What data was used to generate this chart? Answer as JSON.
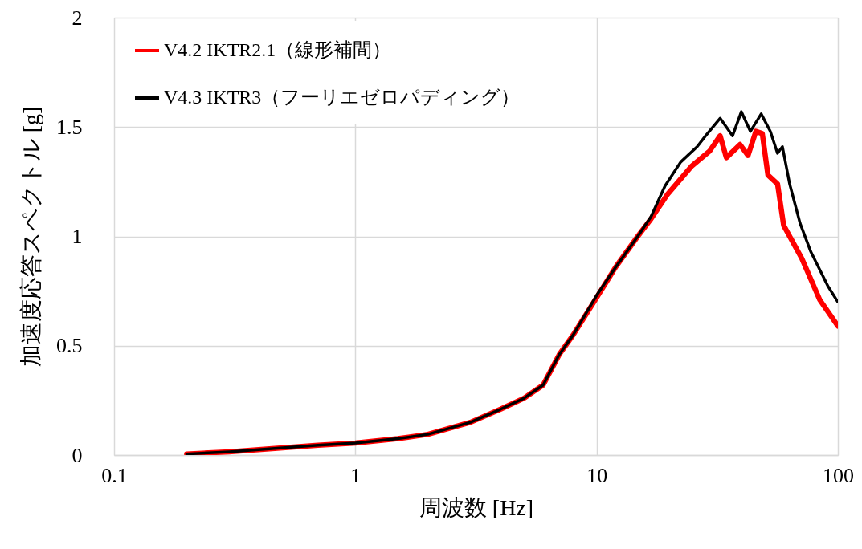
{
  "chart_data": {
    "type": "line",
    "xlabel": "周波数 [Hz]",
    "ylabel": "加速度応答スペクトル [g]",
    "log": "x",
    "grid": true,
    "legend": "top left",
    "marker": "none",
    "line_style": "solid",
    "xlim": [
      0.1,
      100
    ],
    "xticks": [
      0.1,
      1,
      10,
      100
    ],
    "ylim": [
      0,
      2
    ],
    "yticks": [
      0,
      0.5,
      1,
      1.5,
      2
    ],
    "series": [
      {
        "name": "V4.2 IKTR2.1（線形補間）",
        "color": "#ff0000",
        "x": [
          0.2,
          0.3,
          0.5,
          0.7,
          1,
          1.5,
          2,
          3,
          4,
          5,
          6,
          7,
          8,
          10,
          12,
          14.8,
          16.8,
          19.6,
          24.7,
          29.4,
          32.5,
          34.5,
          39.3,
          42.4,
          45.7,
          48.6,
          51.3,
          56.2,
          59.6,
          70.8,
          84.1,
          100
        ],
        "values": [
          0.005,
          0.015,
          0.033,
          0.045,
          0.055,
          0.075,
          0.095,
          0.15,
          0.21,
          0.26,
          0.32,
          0.46,
          0.55,
          0.72,
          0.86,
          1.0,
          1.08,
          1.19,
          1.32,
          1.39,
          1.46,
          1.36,
          1.42,
          1.37,
          1.48,
          1.47,
          1.28,
          1.24,
          1.05,
          0.9,
          0.71,
          0.59
        ]
      },
      {
        "name": "V4.3 IKTR3（フーリエゼロパディング）",
        "color": "#000000",
        "x": [
          0.2,
          0.3,
          0.5,
          0.7,
          1,
          1.5,
          2,
          3,
          4,
          5,
          6,
          7,
          8,
          10,
          12,
          14.8,
          16.8,
          19.2,
          22.3,
          26.1,
          28.3,
          32.5,
          36.6,
          39.8,
          43.4,
          48.1,
          52.5,
          56.2,
          58.9,
          63.1,
          69.7,
          77.2,
          91.2,
          100
        ],
        "values": [
          0.005,
          0.015,
          0.033,
          0.045,
          0.055,
          0.075,
          0.095,
          0.15,
          0.21,
          0.26,
          0.32,
          0.46,
          0.55,
          0.73,
          0.86,
          1.0,
          1.09,
          1.23,
          1.34,
          1.41,
          1.46,
          1.54,
          1.46,
          1.57,
          1.48,
          1.56,
          1.48,
          1.38,
          1.41,
          1.24,
          1.06,
          0.93,
          0.77,
          0.7
        ]
      }
    ]
  }
}
